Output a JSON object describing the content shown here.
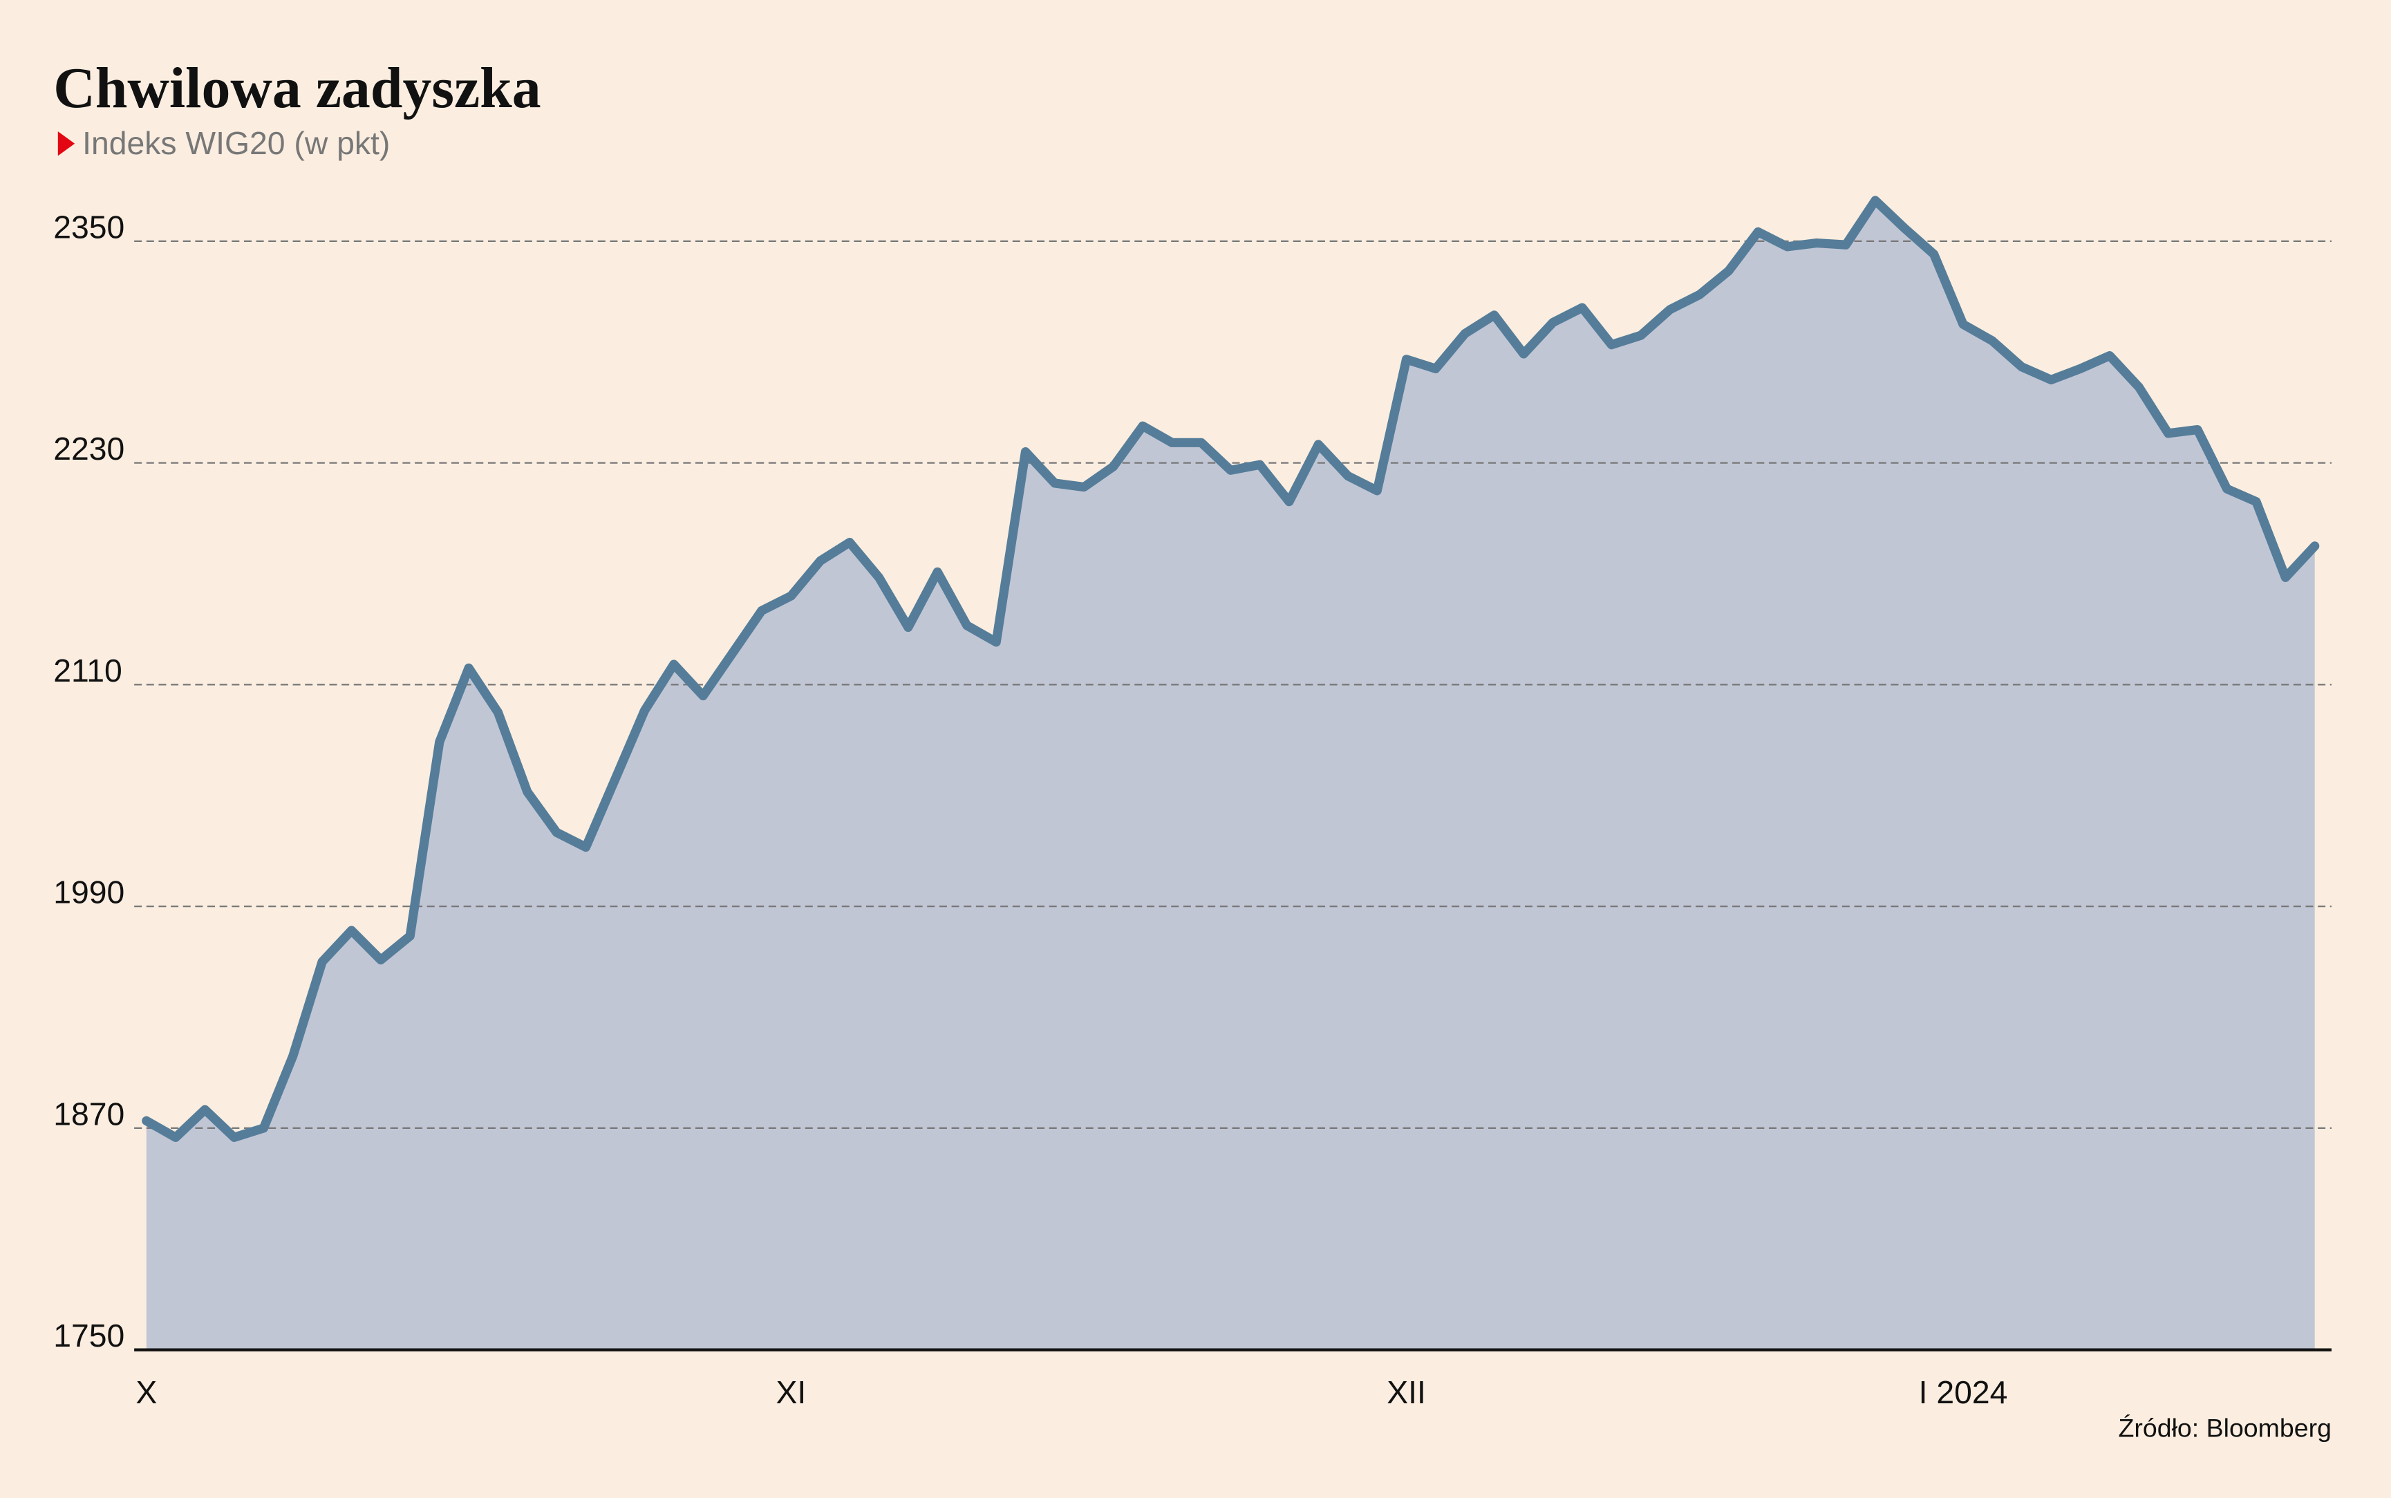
{
  "chart_data": {
    "type": "area",
    "title": "Chwilowa zadyszka",
    "subtitle": "Indeks WIG20 (w pkt)",
    "source": "Źródło: Bloomberg",
    "categories": [
      "X",
      null,
      null,
      null,
      null,
      null,
      null,
      null,
      null,
      null,
      null,
      null,
      null,
      null,
      null,
      null,
      null,
      null,
      null,
      null,
      null,
      null,
      "XI",
      null,
      null,
      null,
      null,
      null,
      null,
      null,
      null,
      null,
      null,
      null,
      null,
      null,
      null,
      null,
      null,
      null,
      null,
      null,
      null,
      "XII",
      null,
      null,
      null,
      null,
      null,
      null,
      null,
      null,
      null,
      null,
      null,
      null,
      null,
      null,
      null,
      null,
      null,
      null,
      "I 2024",
      null,
      null,
      null,
      null,
      null,
      null,
      null,
      null,
      null,
      null,
      null,
      null
    ],
    "values": [
      1874,
      1865,
      1880,
      1865,
      1870,
      1909,
      1960,
      1977,
      1961,
      1974,
      2079,
      2119,
      2095,
      2052,
      2030,
      2022,
      2059,
      2096,
      2121,
      2104,
      2127,
      2150,
      2158,
      2177,
      2187,
      2168,
      2141,
      2171,
      2142,
      2133,
      2236,
      2219,
      2217,
      2228,
      2250,
      2241,
      2241,
      2226,
      2229,
      2209,
      2240,
      2223,
      2215,
      2286,
      2281,
      2300,
      2310,
      2289,
      2306,
      2314,
      2294,
      2299,
      2313,
      2321,
      2334,
      2355,
      2347,
      2349,
      2348,
      2372,
      2357,
      2343,
      2305,
      2296,
      2282,
      2275,
      2281,
      2288,
      2271,
      2246,
      2248,
      2216,
      2209,
      2168,
      2185
    ],
    "color": "#557d99",
    "area_color": "#c1c6d5",
    "ylim": [
      1750,
      2380
    ],
    "yticks": [
      1750,
      1870,
      1990,
      2110,
      2230,
      2350
    ],
    "grid": true
  }
}
